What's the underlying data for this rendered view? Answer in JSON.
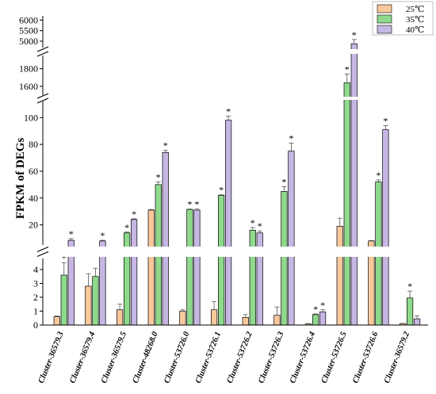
{
  "chart_data": {
    "type": "bar",
    "ylabel": "FPKM of DEGs",
    "xlabel": "",
    "title": "",
    "legend_position": "top-right",
    "categories": [
      "Cluster-36579.3",
      "Cluster-36579.4",
      "Cluster-36579.5",
      "Cluster-48268.0",
      "Cluster-53726.0",
      "Cluster-53726.1",
      "Cluster-53726.2",
      "Cluster-53726.3",
      "Cluster-53726.4",
      "Cluster-53726.5",
      "Cluster-53726.6",
      "Cluster-36579.2"
    ],
    "series": [
      {
        "name": "25℃",
        "color": "#f9c89b",
        "values": [
          0.6,
          2.8,
          1.1,
          31,
          1.0,
          1.1,
          0.55,
          0.7,
          0.08,
          19,
          8,
          0.1
        ],
        "errors": [
          0.05,
          0.9,
          0.4,
          0.5,
          0.1,
          0.6,
          0.2,
          0.6,
          0.02,
          6,
          0.3,
          0.02
        ],
        "significant": [
          false,
          false,
          false,
          false,
          false,
          false,
          false,
          false,
          false,
          false,
          false,
          false
        ]
      },
      {
        "name": "35℃",
        "color": "#8fd98c",
        "values": [
          3.6,
          3.5,
          14,
          50,
          31.5,
          42,
          16,
          45,
          0.75,
          1640,
          52,
          1.95
        ],
        "errors": [
          0.9,
          0.6,
          0.6,
          2.0,
          0.3,
          0.4,
          2.0,
          3.5,
          0.05,
          100,
          1.5,
          0.5
        ],
        "significant": [
          true,
          false,
          true,
          true,
          true,
          true,
          true,
          true,
          true,
          true,
          true,
          true
        ]
      },
      {
        "name": "40℃",
        "color": "#c6b6e3",
        "values": [
          8.5,
          8,
          24,
          74,
          31,
          98,
          14,
          75,
          0.95,
          4880,
          91,
          0.45
        ],
        "errors": [
          1.2,
          0.5,
          0.5,
          1.5,
          0.8,
          3.0,
          1.5,
          6.0,
          0.15,
          200,
          3.0,
          0.2
        ],
        "significant": [
          true,
          true,
          true,
          true,
          true,
          true,
          true,
          true,
          true,
          true,
          true,
          false
        ]
      }
    ],
    "axis_segments": [
      {
        "range": [
          0,
          4.8
        ],
        "ticks": [
          0,
          1,
          2,
          3,
          4
        ]
      },
      {
        "range": [
          5,
          112
        ],
        "ticks": [
          20,
          40,
          60,
          80,
          100
        ]
      },
      {
        "range": [
          1500,
          1950
        ],
        "ticks": [
          1600,
          1800
        ]
      },
      {
        "range": [
          4700,
          6200
        ],
        "ticks": [
          5000,
          5500,
          6000
        ]
      }
    ],
    "significance_marker": "*"
  }
}
